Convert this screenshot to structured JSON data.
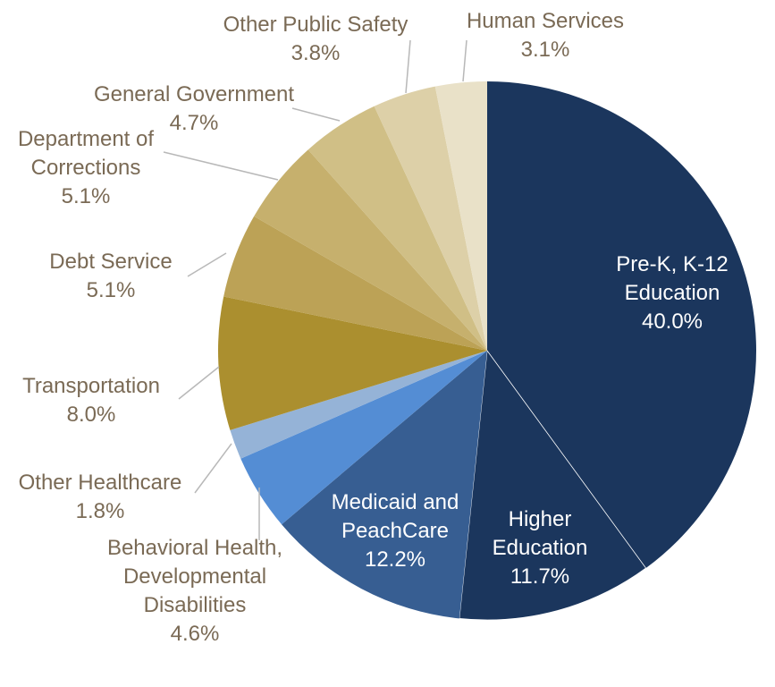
{
  "chart_data": {
    "type": "pie",
    "title": "",
    "start": "12 o'clock",
    "direction": "clockwise",
    "slices": [
      {
        "label_lines": [
          "Pre-K, K-12",
          "Education"
        ],
        "value": 40.0,
        "value_text": "40.0%",
        "color": "#1b365d",
        "label_color": "#ffffff",
        "label_inside": true
      },
      {
        "label_lines": [
          "Higher",
          "Education"
        ],
        "value": 11.7,
        "value_text": "11.7%",
        "color": "#1b365d",
        "label_color": "#ffffff",
        "label_inside": true
      },
      {
        "label_lines": [
          "Medicaid and",
          "PeachCare"
        ],
        "value": 12.2,
        "value_text": "12.2%",
        "color": "#375e92",
        "label_color": "#ffffff",
        "label_inside": true
      },
      {
        "label_lines": [
          "Behavioral Health,",
          "Developmental",
          "Disabilities"
        ],
        "value": 4.6,
        "value_text": "4.6%",
        "color": "#548dd4",
        "label_color": "#7a6a55",
        "label_inside": false
      },
      {
        "label_lines": [
          "Other Healthcare"
        ],
        "value": 1.8,
        "value_text": "1.8%",
        "color": "#95b3d7",
        "label_color": "#7a6a55",
        "label_inside": false
      },
      {
        "label_lines": [
          "Transportation"
        ],
        "value": 8.0,
        "value_text": "8.0%",
        "color": "#ab8f2f",
        "label_color": "#7a6a55",
        "label_inside": false
      },
      {
        "label_lines": [
          "Debt Service"
        ],
        "value": 5.1,
        "value_text": "5.1%",
        "color": "#bca256",
        "label_color": "#7a6a55",
        "label_inside": false
      },
      {
        "label_lines": [
          "Department of",
          "Corrections"
        ],
        "value": 5.1,
        "value_text": "5.1%",
        "color": "#c6b06d",
        "label_color": "#7a6a55",
        "label_inside": false
      },
      {
        "label_lines": [
          "General Government"
        ],
        "value": 4.7,
        "value_text": "4.7%",
        "color": "#d0bf86",
        "label_color": "#7a6a55",
        "label_inside": false
      },
      {
        "label_lines": [
          "Other Public Safety"
        ],
        "value": 3.8,
        "value_text": "3.8%",
        "color": "#ddd0a8",
        "label_color": "#7a6a55",
        "label_inside": false
      },
      {
        "label_lines": [
          "Human Services"
        ],
        "value": 3.1,
        "value_text": "3.1%",
        "color": "#e9e1c8",
        "label_color": "#7a6a55",
        "label_inside": false
      }
    ]
  }
}
